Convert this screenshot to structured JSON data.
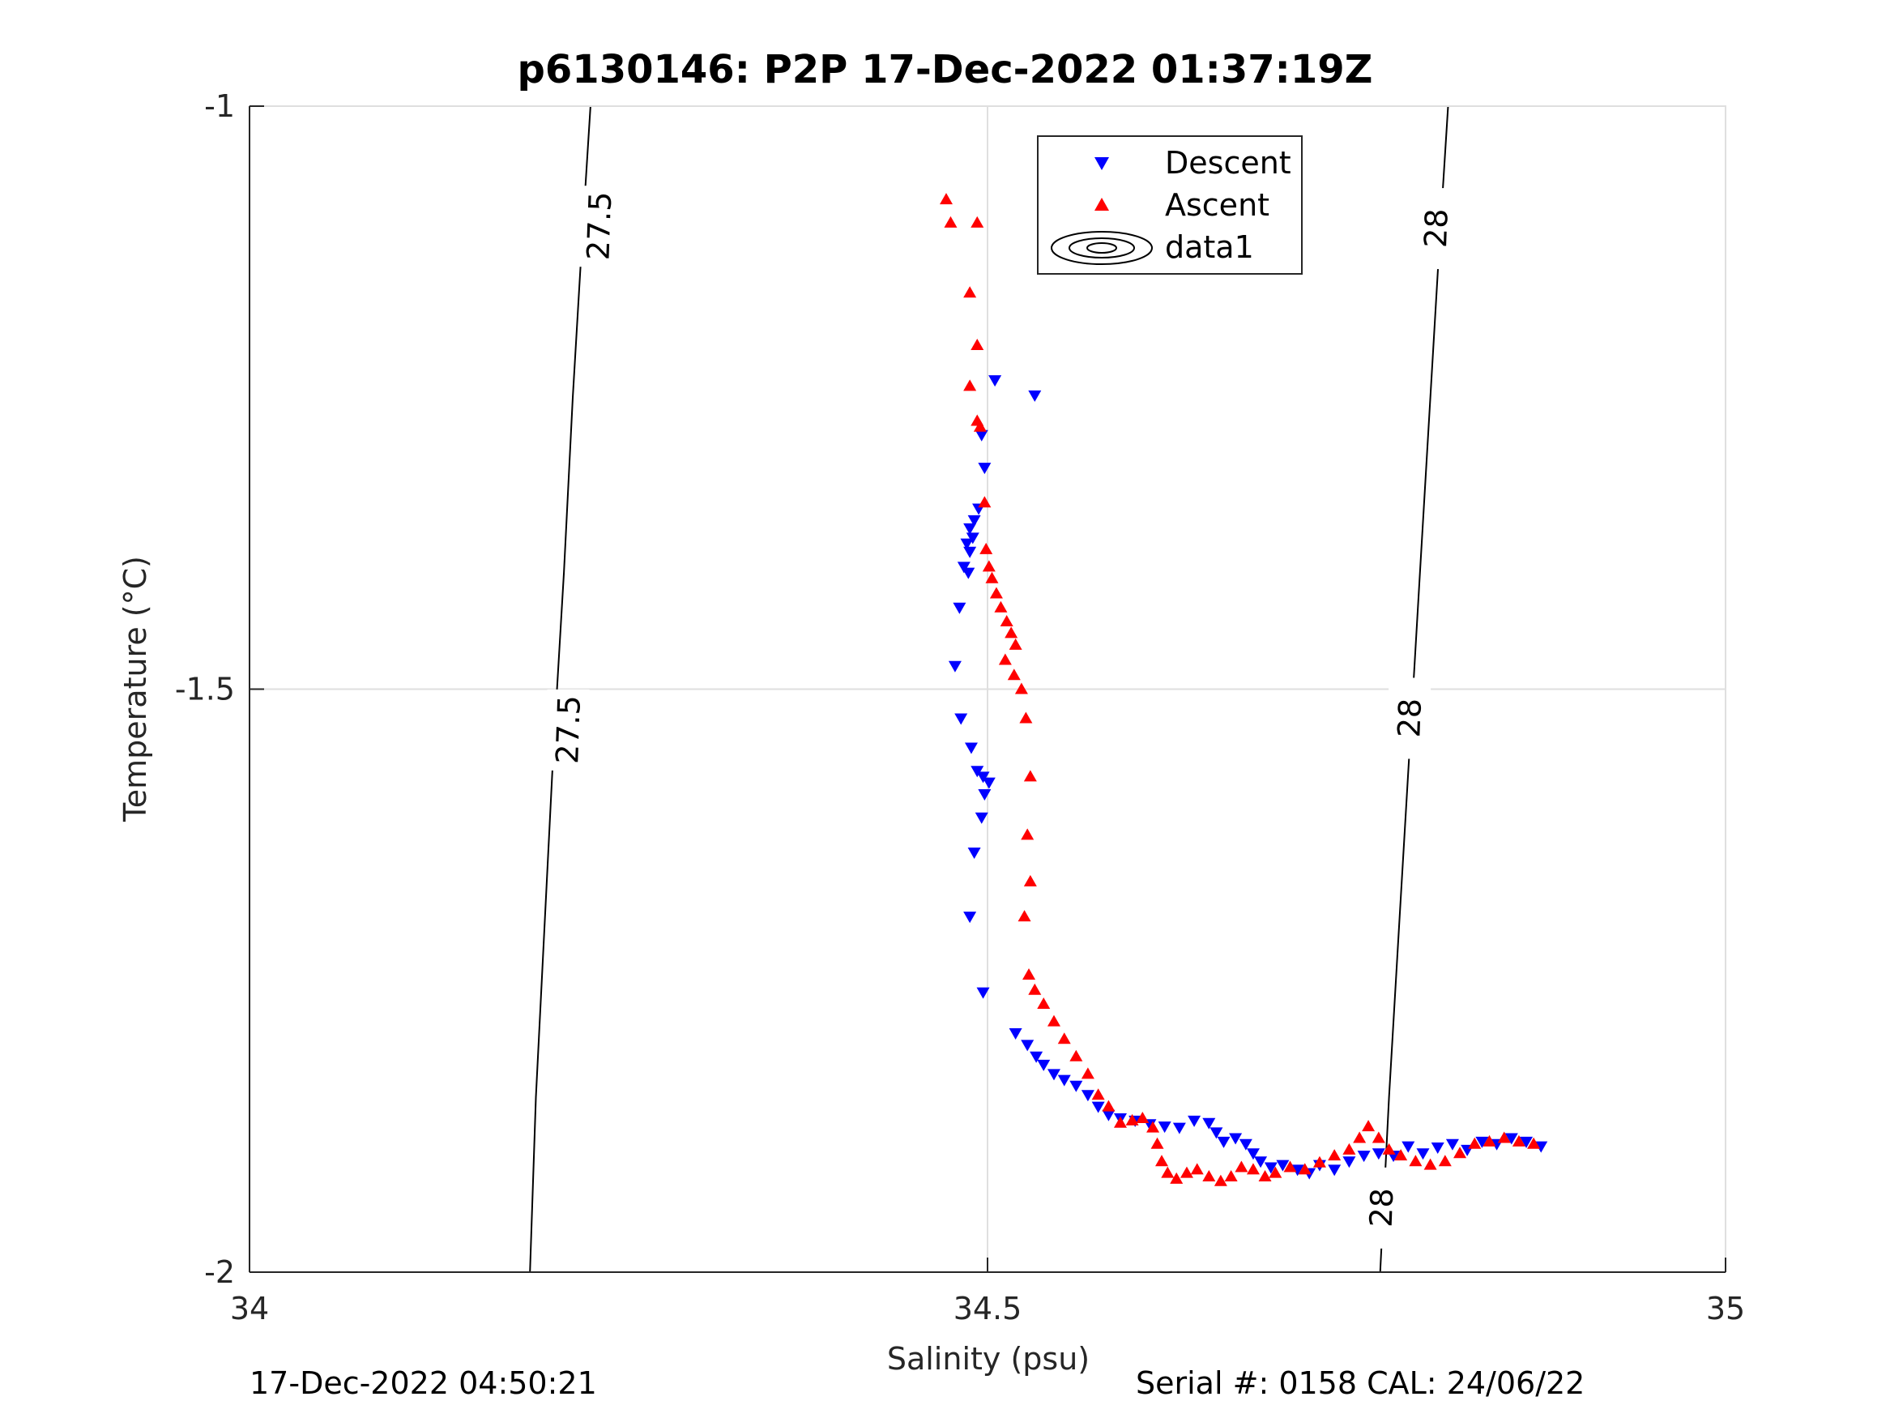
{
  "chart_data": {
    "type": "scatter",
    "title": "p6130146: P2P 17-Dec-2022 01:37:19Z",
    "xlabel": "Salinity (psu)",
    "ylabel": "Temperature (°C)",
    "xlim": [
      34,
      35
    ],
    "ylim": [
      -2,
      -1
    ],
    "xticks": [
      34,
      34.5,
      35
    ],
    "xtick_labels": [
      "34",
      "34.5",
      "35"
    ],
    "yticks": [
      -2,
      -1.5,
      -1
    ],
    "ytick_labels": [
      "-2",
      "-1.5",
      "-1"
    ],
    "grid": true,
    "legend": {
      "placement": "top-center",
      "entries": [
        "Descent",
        "Ascent",
        "data1"
      ]
    },
    "series": [
      {
        "name": "Descent",
        "marker": "triangle-down",
        "color": "#0000ff",
        "points": [
          [
            34.505,
            -1.235
          ],
          [
            34.532,
            -1.248
          ],
          [
            34.496,
            -1.282
          ],
          [
            34.498,
            -1.31
          ],
          [
            34.494,
            -1.345
          ],
          [
            34.491,
            -1.355
          ],
          [
            34.488,
            -1.362
          ],
          [
            34.49,
            -1.37
          ],
          [
            34.486,
            -1.375
          ],
          [
            34.488,
            -1.382
          ],
          [
            34.484,
            -1.395
          ],
          [
            34.487,
            -1.4
          ],
          [
            34.481,
            -1.43
          ],
          [
            34.478,
            -1.48
          ],
          [
            34.482,
            -1.525
          ],
          [
            34.489,
            -1.55
          ],
          [
            34.493,
            -1.57
          ],
          [
            34.497,
            -1.575
          ],
          [
            34.501,
            -1.58
          ],
          [
            34.498,
            -1.59
          ],
          [
            34.496,
            -1.61
          ],
          [
            34.491,
            -1.64
          ],
          [
            34.488,
            -1.695
          ],
          [
            34.497,
            -1.76
          ],
          [
            34.519,
            -1.795
          ],
          [
            34.527,
            -1.805
          ],
          [
            34.533,
            -1.815
          ],
          [
            34.538,
            -1.822
          ],
          [
            34.545,
            -1.83
          ],
          [
            34.552,
            -1.835
          ],
          [
            34.56,
            -1.84
          ],
          [
            34.568,
            -1.848
          ],
          [
            34.575,
            -1.858
          ],
          [
            34.582,
            -1.865
          ],
          [
            34.59,
            -1.868
          ],
          [
            34.6,
            -1.87
          ],
          [
            34.61,
            -1.873
          ],
          [
            34.62,
            -1.875
          ],
          [
            34.63,
            -1.876
          ],
          [
            34.64,
            -1.87
          ],
          [
            34.65,
            -1.872
          ],
          [
            34.655,
            -1.88
          ],
          [
            34.66,
            -1.888
          ],
          [
            34.668,
            -1.885
          ],
          [
            34.675,
            -1.89
          ],
          [
            34.68,
            -1.898
          ],
          [
            34.685,
            -1.905
          ],
          [
            34.692,
            -1.91
          ],
          [
            34.7,
            -1.908
          ],
          [
            34.71,
            -1.912
          ],
          [
            34.718,
            -1.915
          ],
          [
            34.725,
            -1.908
          ],
          [
            34.735,
            -1.912
          ],
          [
            34.745,
            -1.905
          ],
          [
            34.755,
            -1.9
          ],
          [
            34.765,
            -1.898
          ],
          [
            34.775,
            -1.9
          ],
          [
            34.785,
            -1.892
          ],
          [
            34.795,
            -1.898
          ],
          [
            34.805,
            -1.893
          ],
          [
            34.815,
            -1.89
          ],
          [
            34.825,
            -1.895
          ],
          [
            34.835,
            -1.888
          ],
          [
            34.845,
            -1.89
          ],
          [
            34.855,
            -1.885
          ],
          [
            34.865,
            -1.888
          ],
          [
            34.875,
            -1.892
          ]
        ]
      },
      {
        "name": "Ascent",
        "marker": "triangle-up",
        "color": "#ff0000",
        "points": [
          [
            34.472,
            -1.08
          ],
          [
            34.475,
            -1.1
          ],
          [
            34.493,
            -1.1
          ],
          [
            34.488,
            -1.16
          ],
          [
            34.493,
            -1.205
          ],
          [
            34.488,
            -1.24
          ],
          [
            34.493,
            -1.27
          ],
          [
            34.495,
            -1.275
          ],
          [
            34.498,
            -1.34
          ],
          [
            34.499,
            -1.38
          ],
          [
            34.501,
            -1.395
          ],
          [
            34.503,
            -1.405
          ],
          [
            34.506,
            -1.418
          ],
          [
            34.509,
            -1.43
          ],
          [
            34.513,
            -1.442
          ],
          [
            34.516,
            -1.452
          ],
          [
            34.519,
            -1.462
          ],
          [
            34.512,
            -1.475
          ],
          [
            34.518,
            -1.488
          ],
          [
            34.523,
            -1.5
          ],
          [
            34.526,
            -1.525
          ],
          [
            34.529,
            -1.575
          ],
          [
            34.527,
            -1.625
          ],
          [
            34.529,
            -1.665
          ],
          [
            34.525,
            -1.695
          ],
          [
            34.528,
            -1.745
          ],
          [
            34.532,
            -1.758
          ],
          [
            34.538,
            -1.77
          ],
          [
            34.545,
            -1.785
          ],
          [
            34.552,
            -1.8
          ],
          [
            34.56,
            -1.815
          ],
          [
            34.568,
            -1.83
          ],
          [
            34.575,
            -1.848
          ],
          [
            34.582,
            -1.858
          ],
          [
            34.59,
            -1.872
          ],
          [
            34.598,
            -1.87
          ],
          [
            34.605,
            -1.868
          ],
          [
            34.612,
            -1.876
          ],
          [
            34.615,
            -1.89
          ],
          [
            34.618,
            -1.905
          ],
          [
            34.622,
            -1.915
          ],
          [
            34.628,
            -1.92
          ],
          [
            34.635,
            -1.915
          ],
          [
            34.642,
            -1.912
          ],
          [
            34.65,
            -1.918
          ],
          [
            34.658,
            -1.922
          ],
          [
            34.665,
            -1.918
          ],
          [
            34.672,
            -1.91
          ],
          [
            34.68,
            -1.912
          ],
          [
            34.688,
            -1.918
          ],
          [
            34.695,
            -1.915
          ],
          [
            34.705,
            -1.91
          ],
          [
            34.715,
            -1.912
          ],
          [
            34.725,
            -1.906
          ],
          [
            34.735,
            -1.9
          ],
          [
            34.745,
            -1.895
          ],
          [
            34.752,
            -1.885
          ],
          [
            34.758,
            -1.875
          ],
          [
            34.765,
            -1.885
          ],
          [
            34.772,
            -1.895
          ],
          [
            34.78,
            -1.9
          ],
          [
            34.79,
            -1.905
          ],
          [
            34.8,
            -1.908
          ],
          [
            34.81,
            -1.905
          ],
          [
            34.82,
            -1.898
          ],
          [
            34.83,
            -1.89
          ],
          [
            34.84,
            -1.888
          ],
          [
            34.85,
            -1.885
          ],
          [
            34.86,
            -1.888
          ],
          [
            34.87,
            -1.89
          ]
        ]
      },
      {
        "name": "data1",
        "type": "contour",
        "contours": [
          {
            "label": "27.5",
            "line": [
              [
                34.19,
                -2
              ],
              [
                34.194,
                -1.85
              ],
              [
                34.2,
                -1.7
              ],
              [
                34.206,
                -1.55
              ],
              [
                34.213,
                -1.4
              ],
              [
                34.219,
                -1.25
              ],
              [
                34.226,
                -1.1
              ],
              [
                34.231,
                -1
              ]
            ]
          },
          {
            "label": "28",
            "line": [
              [
                34.766,
                -2
              ],
              [
                34.772,
                -1.85
              ],
              [
                34.779,
                -1.7
              ],
              [
                34.786,
                -1.55
              ],
              [
                34.793,
                -1.4
              ],
              [
                34.8,
                -1.25
              ],
              [
                34.807,
                -1.1
              ],
              [
                34.812,
                -1
              ]
            ]
          }
        ],
        "label_positions": [
          {
            "label": "27.5",
            "x": 34.216,
            "y": -1.535
          },
          {
            "label": "27.5",
            "x": 34.237,
            "y": -1.103
          },
          {
            "label": "28",
            "x": 34.786,
            "y": -1.525
          },
          {
            "label": "28",
            "x": 34.804,
            "y": -1.105
          },
          {
            "label": "28",
            "x": 34.767,
            "y": -1.945
          }
        ]
      }
    ]
  },
  "footer": {
    "timestamp": "17-Dec-2022 04:50:21",
    "serial": "Serial #: 0158  CAL: 24/06/22"
  }
}
